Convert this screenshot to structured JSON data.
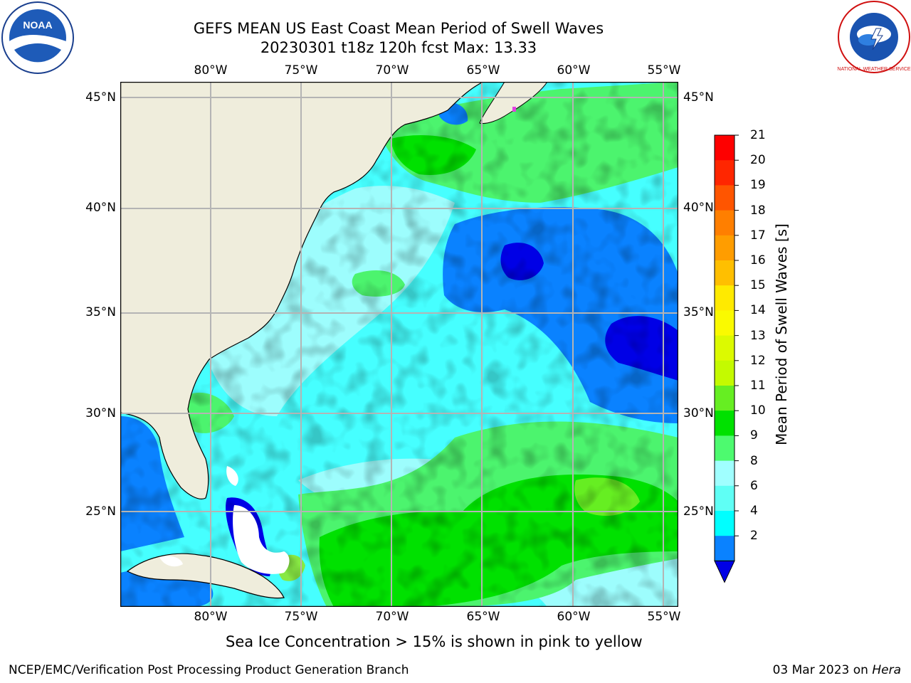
{
  "header": {
    "title_line1": "GEFS MEAN US East Coast Mean Period of Swell Waves",
    "title_line2": "20230301 t18z 120h fcst   Max: 13.33"
  },
  "logos": {
    "noaa_text": "NOAA",
    "nws_text": "NATIONAL WEATHER SERVICE"
  },
  "map": {
    "lon_labels": [
      "80°W",
      "75°W",
      "70°W",
      "65°W",
      "60°W",
      "55°W"
    ],
    "lat_labels": [
      "45°N",
      "40°N",
      "35°N",
      "30°N",
      "25°N"
    ],
    "colors": {
      "land": "#efeddc",
      "ocean_base": "#46ffff",
      "grid": "#b4b4b4",
      "ice_mark": "#e040e0"
    }
  },
  "colorbar": {
    "title": "Mean Period of Swell Waves [s]",
    "tick_labels": [
      "21",
      "20",
      "19",
      "18",
      "17",
      "16",
      "15",
      "14",
      "13",
      "12",
      "11",
      "10",
      "9",
      "8",
      "6",
      "4",
      "2"
    ],
    "colors": [
      "#fe0000",
      "#ff2600",
      "#ff5500",
      "#ff7f00",
      "#ff9d00",
      "#ffbf00",
      "#ffea00",
      "#fafa00",
      "#dcfa00",
      "#c4fa00",
      "#66ee22",
      "#00e100",
      "#4dfa6f",
      "#a0ffff",
      "#5ffff5",
      "#00ffff",
      "#0a82ff",
      "#0000e6"
    ]
  },
  "note": "Sea Ice Concentration > 15% is shown in pink to yellow",
  "footer": {
    "left": "NCEP/EMC/Verification Post Processing Product Generation Branch",
    "right_date": "03 Mar 2023 on ",
    "right_host": "Hera"
  }
}
